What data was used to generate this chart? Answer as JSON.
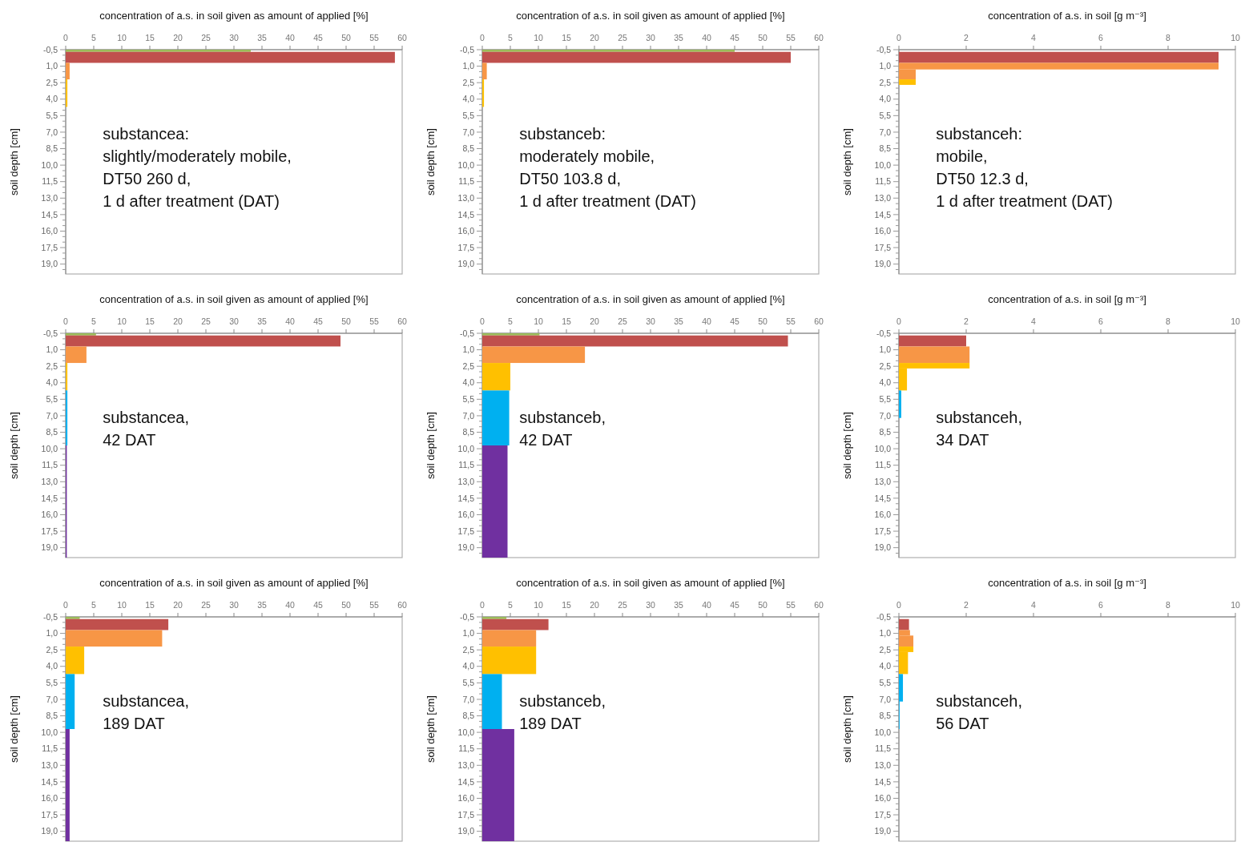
{
  "chart_data": [
    {
      "type": "histogram",
      "orientation": "horizontal",
      "xlabel": "concentration  of a.s. in soil given as amount of applied [%]",
      "ylabel": "soil depth [cm]",
      "annotations": [
        "substancea:",
        "slightly/moderately mobile,",
        "DT50 260 d,",
        "1 d after treatment (DAT)"
      ],
      "xlim": [
        0,
        60
      ],
      "xticks": [
        0,
        5,
        10,
        15,
        20,
        25,
        30,
        35,
        40,
        45,
        50,
        55,
        60
      ],
      "ylim": [
        19.9,
        -0.5
      ],
      "yticks": [
        {
          "value": -0.5,
          "label": "-0,5"
        },
        {
          "value": 0,
          "label": null
        },
        {
          "value": 0.5,
          "label": null
        },
        {
          "value": 1,
          "label": "1,0"
        },
        {
          "value": 1.5,
          "label": null
        },
        {
          "value": 2,
          "label": null
        },
        {
          "value": 2.5,
          "label": "2,5"
        },
        {
          "value": 3,
          "label": null
        },
        {
          "value": 3.5,
          "label": null
        },
        {
          "value": 4,
          "label": "4,0"
        },
        {
          "value": 4.5,
          "label": null
        },
        {
          "value": 5,
          "label": null
        },
        {
          "value": 5.5,
          "label": "5,5"
        },
        {
          "value": 6,
          "label": null
        },
        {
          "value": 6.5,
          "label": null
        },
        {
          "value": 7,
          "label": "7,0"
        },
        {
          "value": 7.5,
          "label": null
        },
        {
          "value": 8,
          "label": null
        },
        {
          "value": 8.5,
          "label": "8,5"
        },
        {
          "value": 9,
          "label": null
        },
        {
          "value": 9.5,
          "label": null
        },
        {
          "value": 10,
          "label": "10,0"
        },
        {
          "value": 10.5,
          "label": null
        },
        {
          "value": 11,
          "label": null
        },
        {
          "value": 11.5,
          "label": "11,5"
        },
        {
          "value": 12,
          "label": null
        },
        {
          "value": 12.5,
          "label": null
        },
        {
          "value": 13,
          "label": "13,0"
        },
        {
          "value": 13.5,
          "label": null
        },
        {
          "value": 14,
          "label": null
        },
        {
          "value": 14.5,
          "label": "14,5"
        },
        {
          "value": 15,
          "label": null
        },
        {
          "value": 15.5,
          "label": null
        },
        {
          "value": 16,
          "label": "16,0"
        },
        {
          "value": 16.5,
          "label": null
        },
        {
          "value": 17,
          "label": null
        },
        {
          "value": 17.5,
          "label": "17,5"
        },
        {
          "value": 18,
          "label": null
        },
        {
          "value": 18.5,
          "label": null
        },
        {
          "value": 19,
          "label": "19,0"
        },
        {
          "value": 19.5,
          "label": null
        }
      ],
      "bins": [
        -0.5,
        -0.3,
        0.7,
        2.2,
        4.7
      ],
      "values": [
        33,
        58.7,
        0.7,
        0.3
      ],
      "colors": [
        "#9bbb59",
        "#c0504d",
        "#f79646",
        "#ffc000"
      ]
    },
    {
      "type": "histogram",
      "orientation": "horizontal",
      "xlabel": "concentration  of a.s. in soil given as amount of applied [%]",
      "ylabel": "soil depth [cm]",
      "annotations": [
        "substanceb:",
        "moderately mobile,",
        "DT50 103.8 d,",
        "1 d after treatment (DAT)"
      ],
      "xlim": [
        0,
        60
      ],
      "xticks": [
        0,
        5,
        10,
        15,
        20,
        25,
        30,
        35,
        40,
        45,
        50,
        55,
        60
      ],
      "ylim": [
        19.9,
        -0.5
      ],
      "yticks": [
        {
          "value": -0.5,
          "label": "-0,5"
        },
        {
          "value": 0,
          "label": null
        },
        {
          "value": 0.5,
          "label": null
        },
        {
          "value": 1,
          "label": "1,0"
        },
        {
          "value": 1.5,
          "label": null
        },
        {
          "value": 2,
          "label": null
        },
        {
          "value": 2.5,
          "label": "2,5"
        },
        {
          "value": 3,
          "label": null
        },
        {
          "value": 3.5,
          "label": null
        },
        {
          "value": 4,
          "label": "4,0"
        },
        {
          "value": 4.5,
          "label": null
        },
        {
          "value": 5,
          "label": null
        },
        {
          "value": 5.5,
          "label": "5,5"
        },
        {
          "value": 6,
          "label": null
        },
        {
          "value": 6.5,
          "label": null
        },
        {
          "value": 7,
          "label": "7,0"
        },
        {
          "value": 7.5,
          "label": null
        },
        {
          "value": 8,
          "label": null
        },
        {
          "value": 8.5,
          "label": "8,5"
        },
        {
          "value": 9,
          "label": null
        },
        {
          "value": 9.5,
          "label": null
        },
        {
          "value": 10,
          "label": "10,0"
        },
        {
          "value": 10.5,
          "label": null
        },
        {
          "value": 11,
          "label": null
        },
        {
          "value": 11.5,
          "label": "11,5"
        },
        {
          "value": 12,
          "label": null
        },
        {
          "value": 12.5,
          "label": null
        },
        {
          "value": 13,
          "label": "13,0"
        },
        {
          "value": 13.5,
          "label": null
        },
        {
          "value": 14,
          "label": null
        },
        {
          "value": 14.5,
          "label": "14,5"
        },
        {
          "value": 15,
          "label": null
        },
        {
          "value": 15.5,
          "label": null
        },
        {
          "value": 16,
          "label": "16,0"
        },
        {
          "value": 16.5,
          "label": null
        },
        {
          "value": 17,
          "label": null
        },
        {
          "value": 17.5,
          "label": "17,5"
        },
        {
          "value": 18,
          "label": null
        },
        {
          "value": 18.5,
          "label": null
        },
        {
          "value": 19,
          "label": "19,0"
        },
        {
          "value": 19.5,
          "label": null
        }
      ],
      "bins": [
        -0.5,
        -0.3,
        0.7,
        2.2,
        4.7
      ],
      "values": [
        45,
        55,
        0.8,
        0.3
      ],
      "colors": [
        "#9bbb59",
        "#c0504d",
        "#f79646",
        "#ffc000"
      ]
    },
    {
      "type": "histogram",
      "orientation": "horizontal",
      "xlabel": "concentration  of a.s. in soil [g m⁻³]",
      "ylabel": "soil depth [cm]",
      "annotations": [
        "substanceh:",
        "mobile,",
        "DT50 12.3 d,",
        "1 d after treatment (DAT)"
      ],
      "xlim": [
        0,
        10
      ],
      "xticks": [
        0,
        2,
        4,
        6,
        8,
        10
      ],
      "ylim": [
        19.9,
        -0.5
      ],
      "yticks": [
        {
          "value": -0.5,
          "label": "-0,5"
        },
        {
          "value": 0,
          "label": null
        },
        {
          "value": 0.5,
          "label": null
        },
        {
          "value": 1,
          "label": "1,0"
        },
        {
          "value": 1.5,
          "label": null
        },
        {
          "value": 2,
          "label": null
        },
        {
          "value": 2.5,
          "label": "2,5"
        },
        {
          "value": 3,
          "label": null
        },
        {
          "value": 3.5,
          "label": null
        },
        {
          "value": 4,
          "label": "4,0"
        },
        {
          "value": 4.5,
          "label": null
        },
        {
          "value": 5,
          "label": null
        },
        {
          "value": 5.5,
          "label": "5,5"
        },
        {
          "value": 6,
          "label": null
        },
        {
          "value": 6.5,
          "label": null
        },
        {
          "value": 7,
          "label": "7,0"
        },
        {
          "value": 7.5,
          "label": null
        },
        {
          "value": 8,
          "label": null
        },
        {
          "value": 8.5,
          "label": "8,5"
        },
        {
          "value": 9,
          "label": null
        },
        {
          "value": 9.5,
          "label": null
        },
        {
          "value": 10,
          "label": "10,0"
        },
        {
          "value": 10.5,
          "label": null
        },
        {
          "value": 11,
          "label": null
        },
        {
          "value": 11.5,
          "label": "11,5"
        },
        {
          "value": 12,
          "label": null
        },
        {
          "value": 12.5,
          "label": null
        },
        {
          "value": 13,
          "label": "13,0"
        },
        {
          "value": 13.5,
          "label": null
        },
        {
          "value": 14,
          "label": null
        },
        {
          "value": 14.5,
          "label": "14,5"
        },
        {
          "value": 15,
          "label": null
        },
        {
          "value": 15.5,
          "label": null
        },
        {
          "value": 16,
          "label": "16,0"
        },
        {
          "value": 16.5,
          "label": null
        },
        {
          "value": 17,
          "label": null
        },
        {
          "value": 17.5,
          "label": "17,5"
        },
        {
          "value": 18,
          "label": null
        },
        {
          "value": 18.5,
          "label": null
        },
        {
          "value": 19,
          "label": "19,0"
        },
        {
          "value": 19.5,
          "label": null
        }
      ],
      "bins": [
        -0.3,
        0.7,
        1.3,
        2.2,
        2.7
      ],
      "values": [
        9.5,
        9.5,
        0.5,
        0.5
      ],
      "colors": [
        "#c0504d",
        "#f79646",
        "#f79646",
        "#ffc000"
      ]
    },
    {
      "type": "histogram",
      "orientation": "horizontal",
      "xlabel": "concentration  of a.s. in soil given as amount of applied [%]",
      "ylabel": "soil depth [cm]",
      "annotations": [
        "substancea,",
        "42 DAT"
      ],
      "xlim": [
        0,
        60
      ],
      "xticks": [
        0,
        5,
        10,
        15,
        20,
        25,
        30,
        35,
        40,
        45,
        50,
        55,
        60
      ],
      "ylim": [
        19.9,
        -0.5
      ],
      "yticks": [
        {
          "value": -0.5,
          "label": "-0,5"
        },
        {
          "value": 0,
          "label": null
        },
        {
          "value": 0.5,
          "label": null
        },
        {
          "value": 1,
          "label": "1,0"
        },
        {
          "value": 1.5,
          "label": null
        },
        {
          "value": 2,
          "label": null
        },
        {
          "value": 2.5,
          "label": "2,5"
        },
        {
          "value": 3,
          "label": null
        },
        {
          "value": 3.5,
          "label": null
        },
        {
          "value": 4,
          "label": "4,0"
        },
        {
          "value": 4.5,
          "label": null
        },
        {
          "value": 5,
          "label": null
        },
        {
          "value": 5.5,
          "label": "5,5"
        },
        {
          "value": 6,
          "label": null
        },
        {
          "value": 6.5,
          "label": null
        },
        {
          "value": 7,
          "label": "7,0"
        },
        {
          "value": 7.5,
          "label": null
        },
        {
          "value": 8,
          "label": null
        },
        {
          "value": 8.5,
          "label": "8,5"
        },
        {
          "value": 9,
          "label": null
        },
        {
          "value": 9.5,
          "label": null
        },
        {
          "value": 10,
          "label": "10,0"
        },
        {
          "value": 10.5,
          "label": null
        },
        {
          "value": 11,
          "label": null
        },
        {
          "value": 11.5,
          "label": "11,5"
        },
        {
          "value": 12,
          "label": null
        },
        {
          "value": 12.5,
          "label": null
        },
        {
          "value": 13,
          "label": "13,0"
        },
        {
          "value": 13.5,
          "label": null
        },
        {
          "value": 14,
          "label": null
        },
        {
          "value": 14.5,
          "label": "14,5"
        },
        {
          "value": 15,
          "label": null
        },
        {
          "value": 15.5,
          "label": null
        },
        {
          "value": 16,
          "label": "16,0"
        },
        {
          "value": 16.5,
          "label": null
        },
        {
          "value": 17,
          "label": null
        },
        {
          "value": 17.5,
          "label": "17,5"
        },
        {
          "value": 18,
          "label": null
        },
        {
          "value": 18.5,
          "label": null
        },
        {
          "value": 19,
          "label": "19,0"
        },
        {
          "value": 19.5,
          "label": null
        }
      ],
      "bins": [
        -0.5,
        -0.3,
        0.7,
        2.2,
        4.7,
        9.7,
        19.9
      ],
      "values": [
        5.4,
        49,
        3.7,
        0.3,
        0.3,
        0.2
      ],
      "colors": [
        "#9bbb59",
        "#c0504d",
        "#f79646",
        "#ffc000",
        "#00b0f0",
        "#7030a0"
      ]
    },
    {
      "type": "histogram",
      "orientation": "horizontal",
      "xlabel": "concentration  of a.s. in soil given as amount of applied [%]",
      "ylabel": "soil depth [cm]",
      "annotations": [
        "substanceb,",
        "42 DAT"
      ],
      "xlim": [
        0,
        60
      ],
      "xticks": [
        0,
        5,
        10,
        15,
        20,
        25,
        30,
        35,
        40,
        45,
        50,
        55,
        60
      ],
      "ylim": [
        19.9,
        -0.5
      ],
      "yticks": [
        {
          "value": -0.5,
          "label": "-0,5"
        },
        {
          "value": 0,
          "label": null
        },
        {
          "value": 0.5,
          "label": null
        },
        {
          "value": 1,
          "label": "1,0"
        },
        {
          "value": 1.5,
          "label": null
        },
        {
          "value": 2,
          "label": null
        },
        {
          "value": 2.5,
          "label": "2,5"
        },
        {
          "value": 3,
          "label": null
        },
        {
          "value": 3.5,
          "label": null
        },
        {
          "value": 4,
          "label": "4,0"
        },
        {
          "value": 4.5,
          "label": null
        },
        {
          "value": 5,
          "label": null
        },
        {
          "value": 5.5,
          "label": "5,5"
        },
        {
          "value": 6,
          "label": null
        },
        {
          "value": 6.5,
          "label": null
        },
        {
          "value": 7,
          "label": "7,0"
        },
        {
          "value": 7.5,
          "label": null
        },
        {
          "value": 8,
          "label": null
        },
        {
          "value": 8.5,
          "label": "8,5"
        },
        {
          "value": 9,
          "label": null
        },
        {
          "value": 9.5,
          "label": null
        },
        {
          "value": 10,
          "label": "10,0"
        },
        {
          "value": 10.5,
          "label": null
        },
        {
          "value": 11,
          "label": null
        },
        {
          "value": 11.5,
          "label": "11,5"
        },
        {
          "value": 12,
          "label": null
        },
        {
          "value": 12.5,
          "label": null
        },
        {
          "value": 13,
          "label": "13,0"
        },
        {
          "value": 13.5,
          "label": null
        },
        {
          "value": 14,
          "label": null
        },
        {
          "value": 14.5,
          "label": "14,5"
        },
        {
          "value": 15,
          "label": null
        },
        {
          "value": 15.5,
          "label": null
        },
        {
          "value": 16,
          "label": "16,0"
        },
        {
          "value": 16.5,
          "label": null
        },
        {
          "value": 17,
          "label": null
        },
        {
          "value": 17.5,
          "label": "17,5"
        },
        {
          "value": 18,
          "label": null
        },
        {
          "value": 18.5,
          "label": null
        },
        {
          "value": 19,
          "label": "19,0"
        },
        {
          "value": 19.5,
          "label": null
        }
      ],
      "bins": [
        -0.5,
        -0.3,
        0.7,
        2.2,
        4.7,
        9.7,
        19.9
      ],
      "values": [
        10.2,
        54.5,
        18.3,
        5,
        4.8,
        4.5
      ],
      "colors": [
        "#9bbb59",
        "#c0504d",
        "#f79646",
        "#ffc000",
        "#00b0f0",
        "#7030a0"
      ]
    },
    {
      "type": "histogram",
      "orientation": "horizontal",
      "xlabel": "concentration  of a.s. in soil [g m⁻³]",
      "ylabel": "soil depth [cm]",
      "annotations": [
        "substanceh,",
        "34 DAT"
      ],
      "xlim": [
        0,
        10
      ],
      "xticks": [
        0,
        2,
        4,
        6,
        8,
        10
      ],
      "ylim": [
        19.9,
        -0.5
      ],
      "yticks": [
        {
          "value": -0.5,
          "label": "-0,5"
        },
        {
          "value": 0,
          "label": null
        },
        {
          "value": 0.5,
          "label": null
        },
        {
          "value": 1,
          "label": "1,0"
        },
        {
          "value": 1.5,
          "label": null
        },
        {
          "value": 2,
          "label": null
        },
        {
          "value": 2.5,
          "label": "2,5"
        },
        {
          "value": 3,
          "label": null
        },
        {
          "value": 3.5,
          "label": null
        },
        {
          "value": 4,
          "label": "4,0"
        },
        {
          "value": 4.5,
          "label": null
        },
        {
          "value": 5,
          "label": null
        },
        {
          "value": 5.5,
          "label": "5,5"
        },
        {
          "value": 6,
          "label": null
        },
        {
          "value": 6.5,
          "label": null
        },
        {
          "value": 7,
          "label": "7,0"
        },
        {
          "value": 7.5,
          "label": null
        },
        {
          "value": 8,
          "label": null
        },
        {
          "value": 8.5,
          "label": "8,5"
        },
        {
          "value": 9,
          "label": null
        },
        {
          "value": 9.5,
          "label": null
        },
        {
          "value": 10,
          "label": "10,0"
        },
        {
          "value": 10.5,
          "label": null
        },
        {
          "value": 11,
          "label": null
        },
        {
          "value": 11.5,
          "label": "11,5"
        },
        {
          "value": 12,
          "label": null
        },
        {
          "value": 12.5,
          "label": null
        },
        {
          "value": 13,
          "label": "13,0"
        },
        {
          "value": 13.5,
          "label": null
        },
        {
          "value": 14,
          "label": null
        },
        {
          "value": 14.5,
          "label": "14,5"
        },
        {
          "value": 15,
          "label": null
        },
        {
          "value": 15.5,
          "label": null
        },
        {
          "value": 16,
          "label": "16,0"
        },
        {
          "value": 16.5,
          "label": null
        },
        {
          "value": 17,
          "label": null
        },
        {
          "value": 17.5,
          "label": "17,5"
        },
        {
          "value": 18,
          "label": null
        },
        {
          "value": 18.5,
          "label": null
        },
        {
          "value": 19,
          "label": "19,0"
        },
        {
          "value": 19.5,
          "label": null
        }
      ],
      "bins": [
        -0.3,
        0.7,
        2.2,
        2.7,
        4.7,
        7.2
      ],
      "values": [
        2,
        2.1,
        2.1,
        0.24,
        0.07
      ],
      "colors": [
        "#c0504d",
        "#f79646",
        "#ffc000",
        "#ffc000",
        "#00b0f0"
      ]
    },
    {
      "type": "histogram",
      "orientation": "horizontal",
      "xlabel": "concentration  of a.s. in soil given as amount of applied [%]",
      "ylabel": "soil depth [cm]",
      "annotations": [
        "substancea,",
        "189 DAT"
      ],
      "xlim": [
        0,
        60
      ],
      "xticks": [
        0,
        5,
        10,
        15,
        20,
        25,
        30,
        35,
        40,
        45,
        50,
        55,
        60
      ],
      "ylim": [
        19.9,
        -0.5
      ],
      "yticks": [
        {
          "value": -0.5,
          "label": "-0,5"
        },
        {
          "value": 0,
          "label": null
        },
        {
          "value": 0.5,
          "label": null
        },
        {
          "value": 1,
          "label": "1,0"
        },
        {
          "value": 1.5,
          "label": null
        },
        {
          "value": 2,
          "label": null
        },
        {
          "value": 2.5,
          "label": "2,5"
        },
        {
          "value": 3,
          "label": null
        },
        {
          "value": 3.5,
          "label": null
        },
        {
          "value": 4,
          "label": "4,0"
        },
        {
          "value": 4.5,
          "label": null
        },
        {
          "value": 5,
          "label": null
        },
        {
          "value": 5.5,
          "label": "5,5"
        },
        {
          "value": 6,
          "label": null
        },
        {
          "value": 6.5,
          "label": null
        },
        {
          "value": 7,
          "label": "7,0"
        },
        {
          "value": 7.5,
          "label": null
        },
        {
          "value": 8,
          "label": null
        },
        {
          "value": 8.5,
          "label": "8,5"
        },
        {
          "value": 9,
          "label": null
        },
        {
          "value": 9.5,
          "label": null
        },
        {
          "value": 10,
          "label": "10,0"
        },
        {
          "value": 10.5,
          "label": null
        },
        {
          "value": 11,
          "label": null
        },
        {
          "value": 11.5,
          "label": "11,5"
        },
        {
          "value": 12,
          "label": null
        },
        {
          "value": 12.5,
          "label": null
        },
        {
          "value": 13,
          "label": "13,0"
        },
        {
          "value": 13.5,
          "label": null
        },
        {
          "value": 14,
          "label": null
        },
        {
          "value": 14.5,
          "label": "14,5"
        },
        {
          "value": 15,
          "label": null
        },
        {
          "value": 15.5,
          "label": null
        },
        {
          "value": 16,
          "label": "16,0"
        },
        {
          "value": 16.5,
          "label": null
        },
        {
          "value": 17,
          "label": null
        },
        {
          "value": 17.5,
          "label": "17,5"
        },
        {
          "value": 18,
          "label": null
        },
        {
          "value": 18.5,
          "label": null
        },
        {
          "value": 19,
          "label": "19,0"
        },
        {
          "value": 19.5,
          "label": null
        }
      ],
      "bins": [
        -0.5,
        -0.3,
        0.7,
        2.2,
        4.7,
        9.7,
        19.9
      ],
      "values": [
        2.5,
        18.3,
        17.2,
        3.3,
        1.6,
        0.7
      ],
      "colors": [
        "#9bbb59",
        "#c0504d",
        "#f79646",
        "#ffc000",
        "#00b0f0",
        "#7030a0"
      ]
    },
    {
      "type": "histogram",
      "orientation": "horizontal",
      "xlabel": "concentration  of a.s. in soil given as amount of applied [%]",
      "ylabel": "soil depth [cm]",
      "annotations": [
        "substanceb,",
        "189 DAT"
      ],
      "xlim": [
        0,
        60
      ],
      "xticks": [
        0,
        5,
        10,
        15,
        20,
        25,
        30,
        35,
        40,
        45,
        50,
        55,
        60
      ],
      "ylim": [
        19.9,
        -0.5
      ],
      "yticks": [
        {
          "value": -0.5,
          "label": "-0,5"
        },
        {
          "value": 0,
          "label": null
        },
        {
          "value": 0.5,
          "label": null
        },
        {
          "value": 1,
          "label": "1,0"
        },
        {
          "value": 1.5,
          "label": null
        },
        {
          "value": 2,
          "label": null
        },
        {
          "value": 2.5,
          "label": "2,5"
        },
        {
          "value": 3,
          "label": null
        },
        {
          "value": 3.5,
          "label": null
        },
        {
          "value": 4,
          "label": "4,0"
        },
        {
          "value": 4.5,
          "label": null
        },
        {
          "value": 5,
          "label": null
        },
        {
          "value": 5.5,
          "label": "5,5"
        },
        {
          "value": 6,
          "label": null
        },
        {
          "value": 6.5,
          "label": null
        },
        {
          "value": 7,
          "label": "7,0"
        },
        {
          "value": 7.5,
          "label": null
        },
        {
          "value": 8,
          "label": null
        },
        {
          "value": 8.5,
          "label": "8,5"
        },
        {
          "value": 9,
          "label": null
        },
        {
          "value": 9.5,
          "label": null
        },
        {
          "value": 10,
          "label": "10,0"
        },
        {
          "value": 10.5,
          "label": null
        },
        {
          "value": 11,
          "label": null
        },
        {
          "value": 11.5,
          "label": "11,5"
        },
        {
          "value": 12,
          "label": null
        },
        {
          "value": 12.5,
          "label": null
        },
        {
          "value": 13,
          "label": "13,0"
        },
        {
          "value": 13.5,
          "label": null
        },
        {
          "value": 14,
          "label": null
        },
        {
          "value": 14.5,
          "label": "14,5"
        },
        {
          "value": 15,
          "label": null
        },
        {
          "value": 15.5,
          "label": null
        },
        {
          "value": 16,
          "label": "16,0"
        },
        {
          "value": 16.5,
          "label": null
        },
        {
          "value": 17,
          "label": null
        },
        {
          "value": 17.5,
          "label": "17,5"
        },
        {
          "value": 18,
          "label": null
        },
        {
          "value": 18.5,
          "label": null
        },
        {
          "value": 19,
          "label": "19,0"
        },
        {
          "value": 19.5,
          "label": null
        }
      ],
      "bins": [
        -0.5,
        -0.3,
        0.7,
        2.2,
        4.7,
        9.7,
        19.9
      ],
      "values": [
        4.3,
        11.8,
        9.6,
        9.6,
        3.5,
        5.7
      ],
      "colors": [
        "#9bbb59",
        "#c0504d",
        "#f79646",
        "#ffc000",
        "#00b0f0",
        "#7030a0"
      ]
    },
    {
      "type": "histogram",
      "orientation": "horizontal",
      "xlabel": "concentration  of a.s. in soil [g m⁻³]",
      "ylabel": "soil depth [cm]",
      "annotations": [
        "substanceh,",
        "56 DAT"
      ],
      "xlim": [
        0,
        10
      ],
      "xticks": [
        0,
        2,
        4,
        6,
        8,
        10
      ],
      "ylim": [
        19.9,
        -0.5
      ],
      "yticks": [
        {
          "value": -0.5,
          "label": "-0,5"
        },
        {
          "value": 0,
          "label": null
        },
        {
          "value": 0.5,
          "label": null
        },
        {
          "value": 1,
          "label": "1,0"
        },
        {
          "value": 1.5,
          "label": null
        },
        {
          "value": 2,
          "label": null
        },
        {
          "value": 2.5,
          "label": "2,5"
        },
        {
          "value": 3,
          "label": null
        },
        {
          "value": 3.5,
          "label": null
        },
        {
          "value": 4,
          "label": "4,0"
        },
        {
          "value": 4.5,
          "label": null
        },
        {
          "value": 5,
          "label": null
        },
        {
          "value": 5.5,
          "label": "5,5"
        },
        {
          "value": 6,
          "label": null
        },
        {
          "value": 6.5,
          "label": null
        },
        {
          "value": 7,
          "label": "7,0"
        },
        {
          "value": 7.5,
          "label": null
        },
        {
          "value": 8,
          "label": null
        },
        {
          "value": 8.5,
          "label": "8,5"
        },
        {
          "value": 9,
          "label": null
        },
        {
          "value": 9.5,
          "label": null
        },
        {
          "value": 10,
          "label": "10,0"
        },
        {
          "value": 10.5,
          "label": null
        },
        {
          "value": 11,
          "label": null
        },
        {
          "value": 11.5,
          "label": "11,5"
        },
        {
          "value": 12,
          "label": null
        },
        {
          "value": 12.5,
          "label": null
        },
        {
          "value": 13,
          "label": "13,0"
        },
        {
          "value": 13.5,
          "label": null
        },
        {
          "value": 14,
          "label": null
        },
        {
          "value": 14.5,
          "label": "14,5"
        },
        {
          "value": 15,
          "label": null
        },
        {
          "value": 15.5,
          "label": null
        },
        {
          "value": 16,
          "label": "16,0"
        },
        {
          "value": 16.5,
          "label": null
        },
        {
          "value": 17,
          "label": null
        },
        {
          "value": 17.5,
          "label": "17,5"
        },
        {
          "value": 18,
          "label": null
        },
        {
          "value": 18.5,
          "label": null
        },
        {
          "value": 19,
          "label": "19,0"
        },
        {
          "value": 19.5,
          "label": null
        }
      ],
      "bins": [
        -0.3,
        0.7,
        1.2,
        2.2,
        2.7,
        4.7,
        7.2,
        9.7
      ],
      "values": [
        0.3,
        0.33,
        0.43,
        0.43,
        0.27,
        0.12,
        0.02
      ],
      "colors": [
        "#c0504d",
        "#f79646",
        "#f79646",
        "#ffc000",
        "#ffc000",
        "#00b0f0",
        "#00b0f0"
      ]
    }
  ]
}
